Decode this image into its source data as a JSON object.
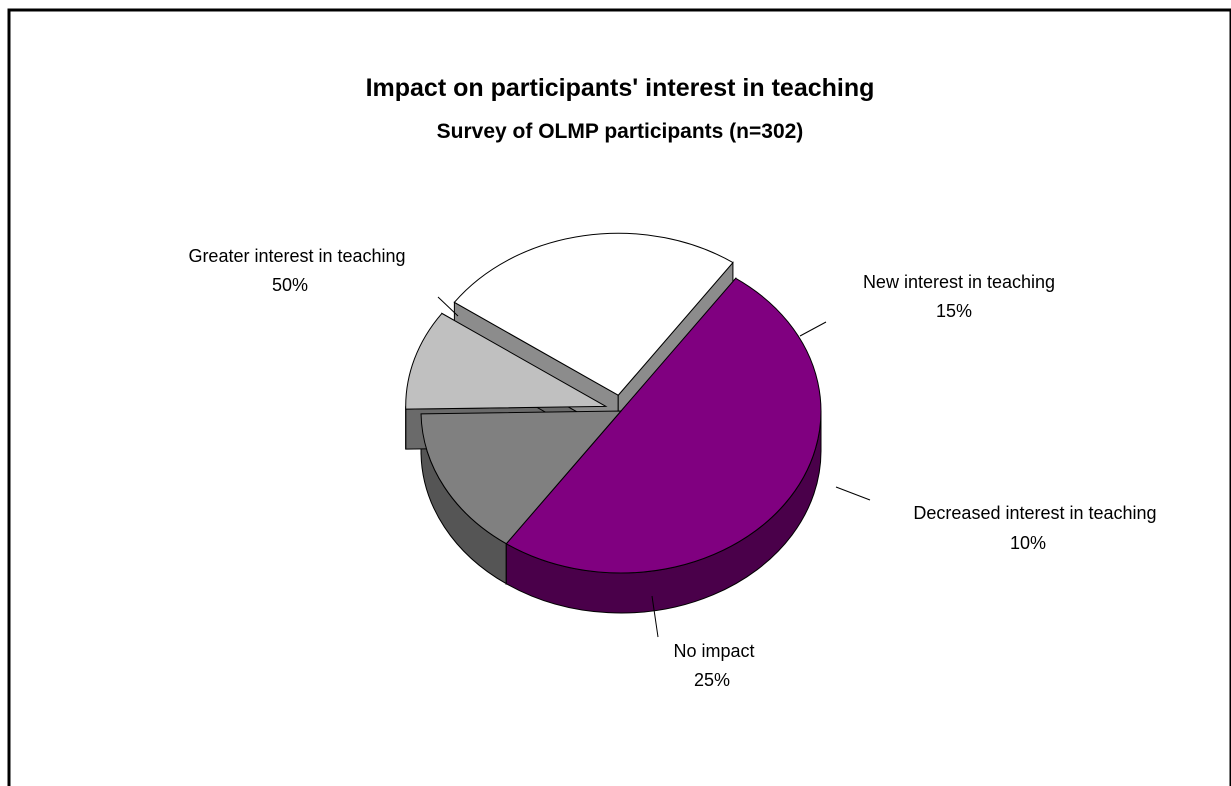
{
  "chart_data": {
    "type": "pie",
    "title": "Impact on participants' interest in teaching",
    "subtitle": "Survey of OLMP participants (n=302)",
    "slices": [
      {
        "name": "Greater interest in teaching",
        "label": "50%",
        "value": 50,
        "color": "#800080"
      },
      {
        "name": "New interest in teaching",
        "label": "15%",
        "value": 15,
        "color": "#808080"
      },
      {
        "name": "Decreased interest in teaching",
        "label": "10%",
        "value": 10,
        "color": "#c0c0c0"
      },
      {
        "name": "No impact",
        "label": "25%",
        "value": 25,
        "color": "#ffffff"
      }
    ]
  }
}
